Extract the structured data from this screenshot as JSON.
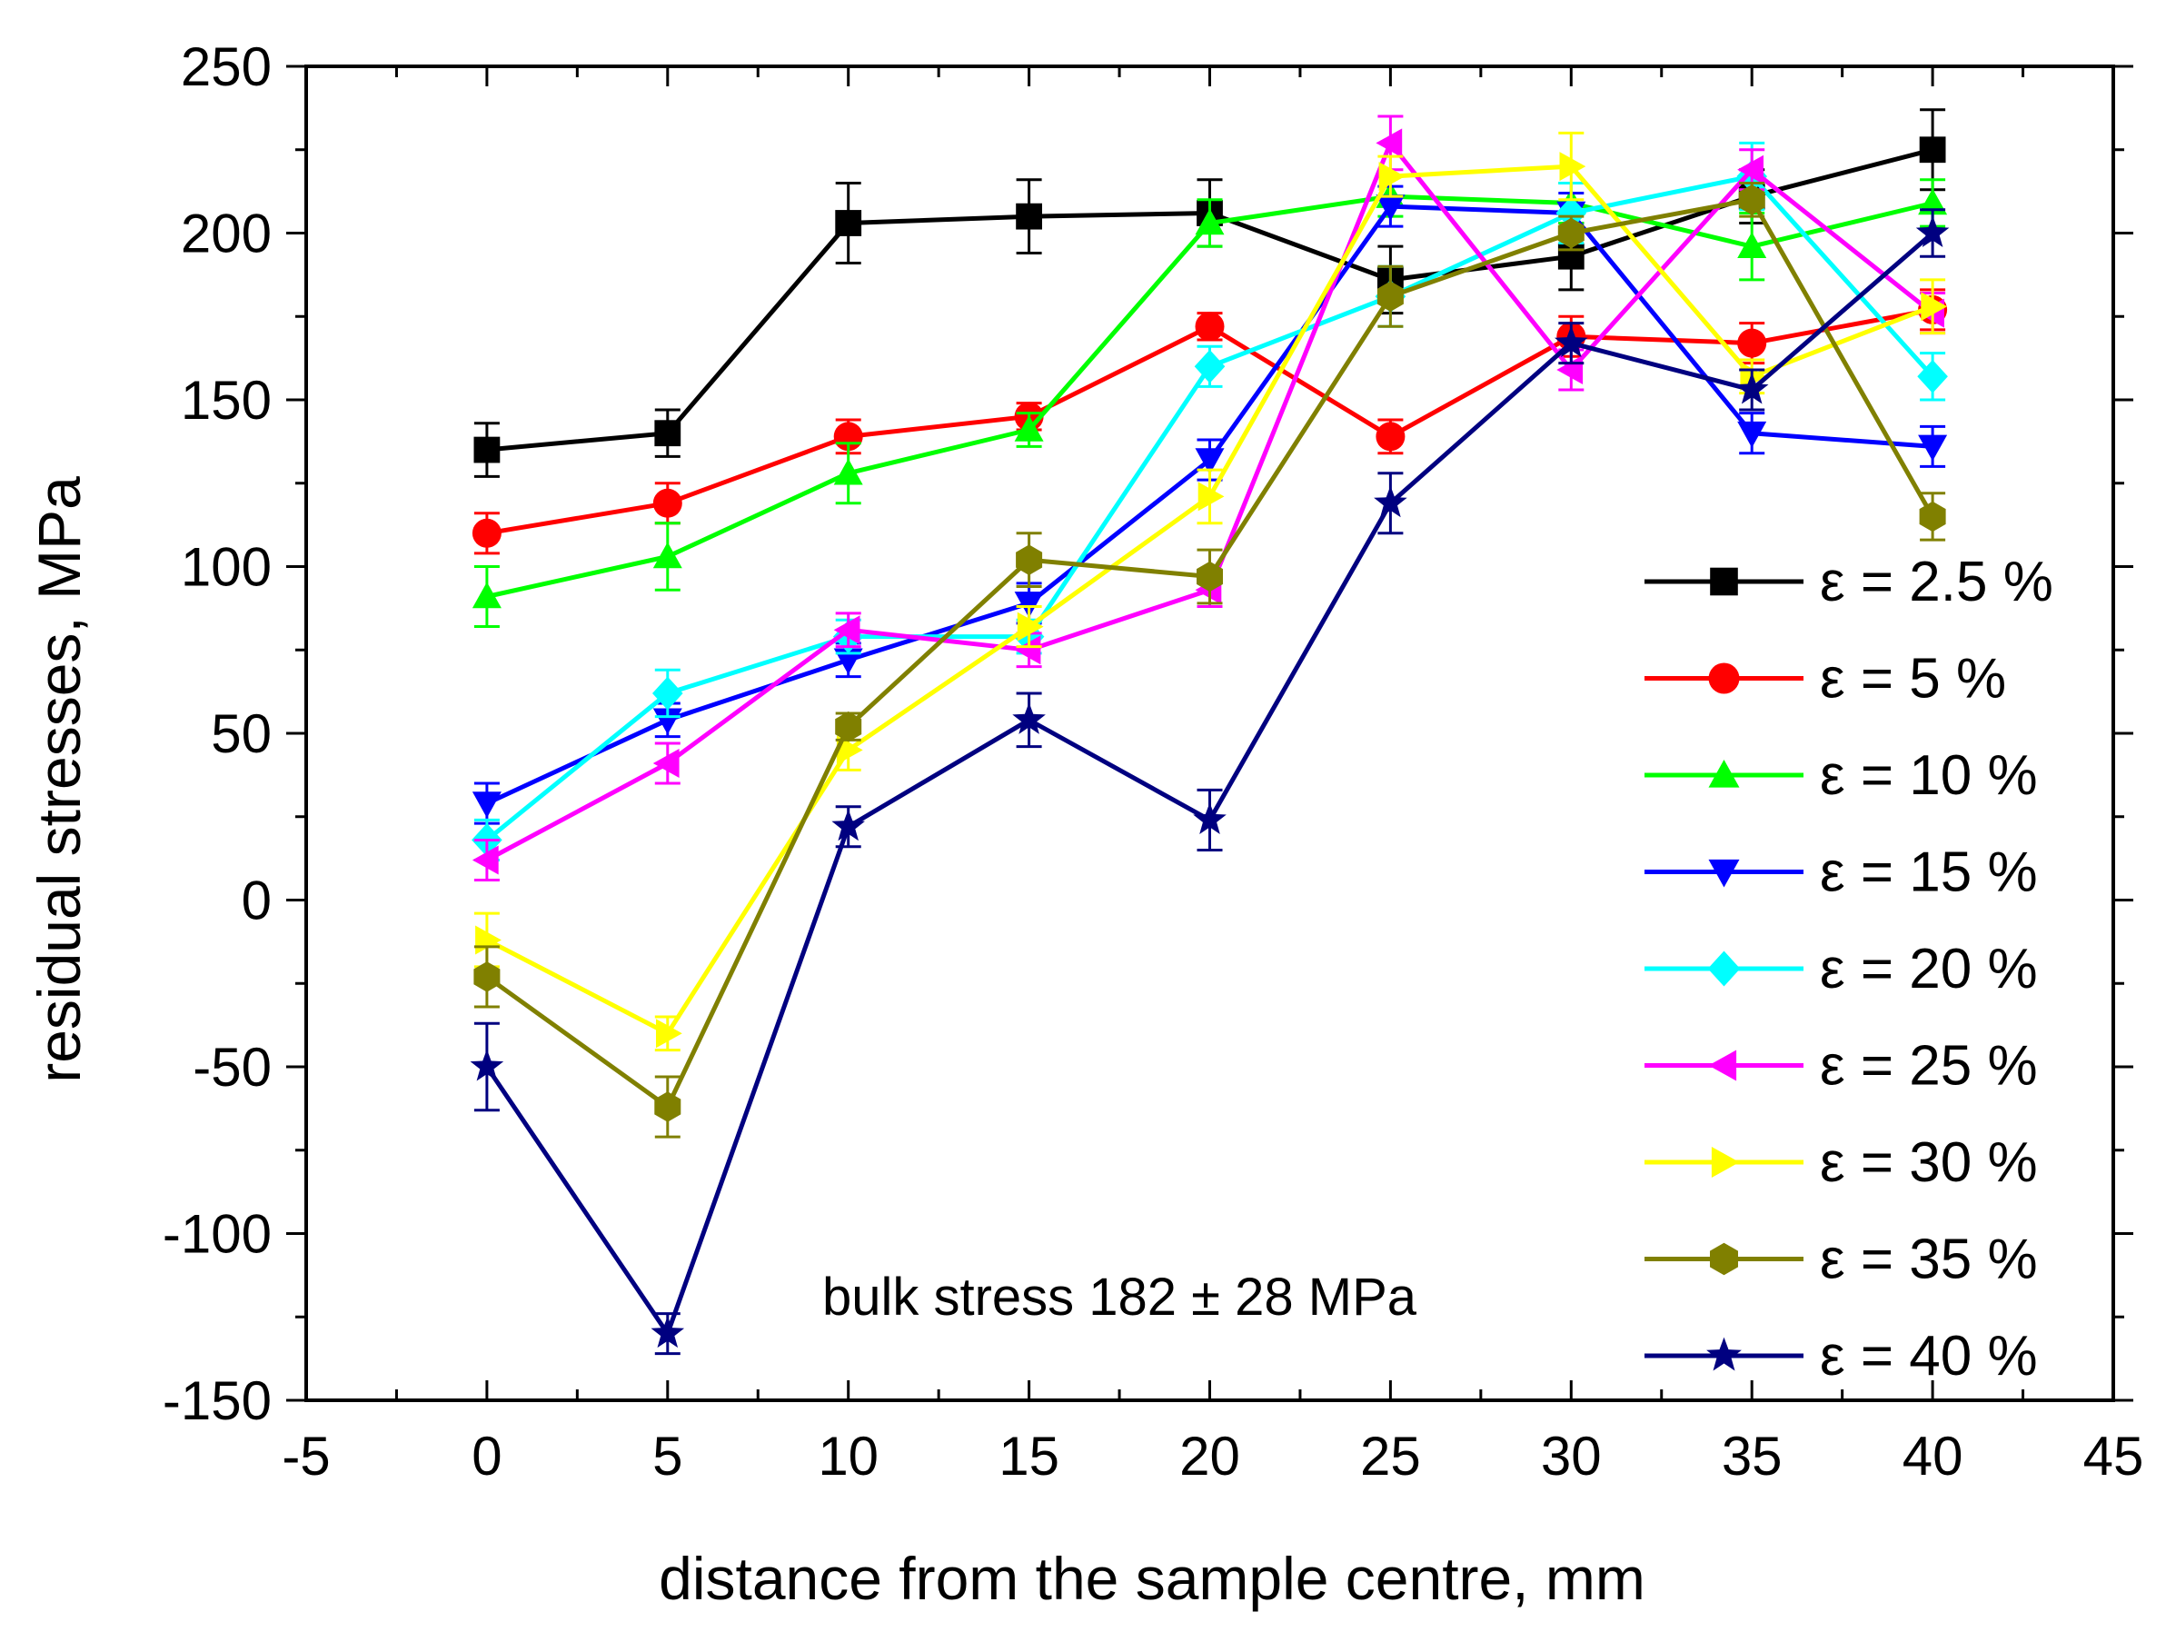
{
  "chart_data": {
    "type": "line",
    "title": "",
    "xlabel": "distance from the sample centre, mm",
    "ylabel": "residual stresses, MPa",
    "xlim": [
      -5,
      45
    ],
    "ylim": [
      -150,
      250
    ],
    "xticks": [
      -5,
      0,
      5,
      10,
      15,
      20,
      25,
      30,
      35,
      40,
      45
    ],
    "xtick_labels": [
      "-5",
      "0",
      "5",
      "10",
      "15",
      "20",
      "25",
      "30",
      "35",
      "40",
      "45"
    ],
    "yticks": [
      -150,
      -100,
      -50,
      0,
      50,
      100,
      150,
      200,
      250
    ],
    "ytick_labels": [
      "-150",
      "-100",
      "-50",
      "0",
      "50",
      "100",
      "150",
      "200",
      "250"
    ],
    "grid": false,
    "legend_position": "right",
    "annotation": "bulk stress 182 ± 28 MPa",
    "x": [
      0,
      5,
      10,
      15,
      20,
      25,
      30,
      35,
      40
    ],
    "series": [
      {
        "name": "ε = 2.5 %",
        "color": "#000000",
        "marker": "square",
        "values": [
          135,
          140,
          203,
          205,
          206,
          186,
          193,
          211,
          225
        ],
        "errors": [
          8,
          7,
          12,
          11,
          10,
          10,
          10,
          8,
          12
        ]
      },
      {
        "name": "ε = 5 %",
        "color": "#ff0000",
        "marker": "circle",
        "values": [
          110,
          119,
          139,
          145,
          172,
          139,
          169,
          167,
          177
        ],
        "errors": [
          6,
          6,
          5,
          4,
          4,
          5,
          6,
          6,
          6
        ]
      },
      {
        "name": "ε = 10 %",
        "color": "#00ff00",
        "marker": "triangle-up",
        "values": [
          91,
          103,
          128,
          141,
          203,
          211,
          209,
          196,
          209
        ],
        "errors": [
          9,
          10,
          9,
          5,
          7,
          6,
          6,
          10,
          7
        ]
      },
      {
        "name": "ε = 15 %",
        "color": "#0000ff",
        "marker": "triangle-down",
        "values": [
          29,
          54,
          72,
          89,
          132,
          208,
          206,
          140,
          136
        ],
        "errors": [
          6,
          5,
          5,
          6,
          6,
          6,
          6,
          6,
          6
        ]
      },
      {
        "name": "ε = 20 %",
        "color": "#00ffff",
        "marker": "diamond",
        "values": [
          18,
          62,
          79,
          79,
          160,
          181,
          206,
          217,
          157
        ],
        "errors": [
          6,
          7,
          5,
          5,
          6,
          9,
          9,
          10,
          7
        ]
      },
      {
        "name": "ε = 25 %",
        "color": "#ff00ff",
        "marker": "triangle-left",
        "values": [
          12,
          41,
          81,
          75,
          93,
          227,
          159,
          219,
          176
        ],
        "errors": [
          6,
          6,
          5,
          5,
          5,
          8,
          6,
          6,
          6
        ]
      },
      {
        "name": "ε = 30 %",
        "color": "#ffff00",
        "marker": "triangle-right",
        "values": [
          -12,
          -40,
          45,
          82,
          121,
          217,
          220,
          157,
          178
        ],
        "errors": [
          8,
          5,
          6,
          6,
          8,
          6,
          10,
          5,
          8
        ]
      },
      {
        "name": "ε = 35 %",
        "color": "#808000",
        "marker": "hexagon",
        "values": [
          -23,
          -62,
          52,
          102,
          97,
          181,
          200,
          210,
          115
        ],
        "errors": [
          9,
          9,
          4,
          8,
          8,
          9,
          5,
          5,
          7
        ]
      },
      {
        "name": "ε = 40 %",
        "color": "#000080",
        "marker": "star",
        "values": [
          -50,
          -130,
          22,
          54,
          24,
          119,
          167,
          153,
          200
        ],
        "errors": [
          13,
          6,
          6,
          8,
          9,
          9,
          6,
          6,
          7
        ]
      }
    ]
  }
}
